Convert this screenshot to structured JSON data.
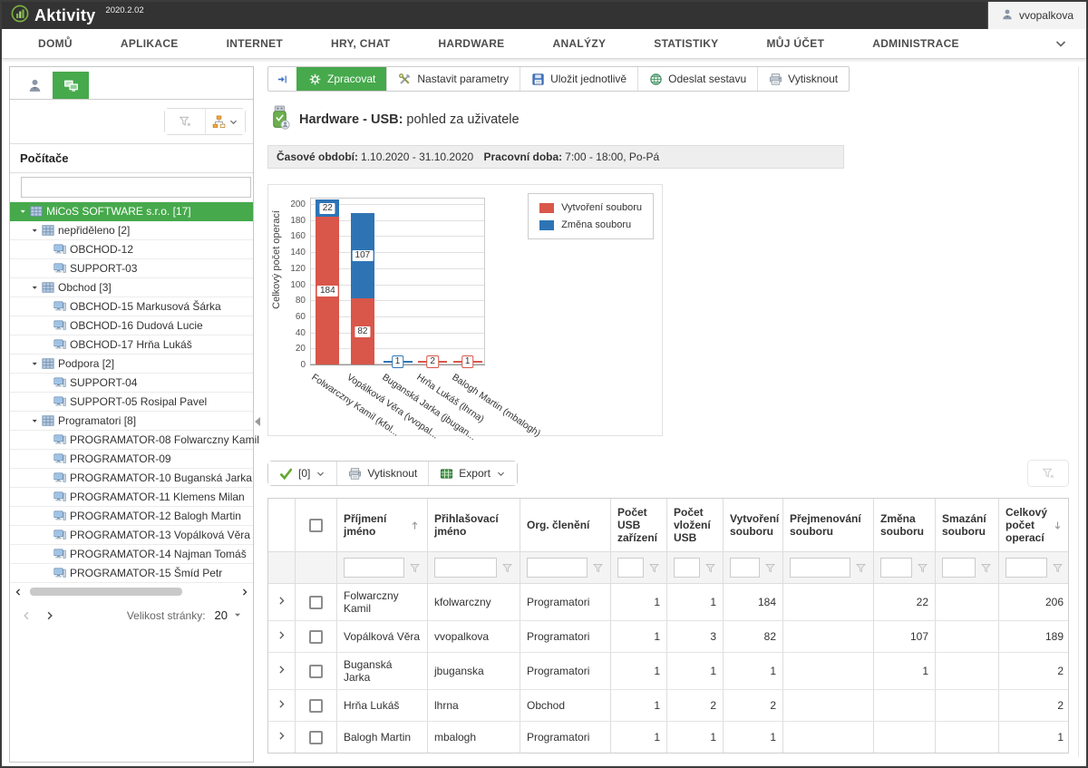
{
  "topbar": {
    "app": "Aktivity",
    "version": "2020.2.02",
    "user": "vvopalkova"
  },
  "menu": {
    "items": [
      "DOMŮ",
      "APLIKACE",
      "INTERNET",
      "HRY, CHAT",
      "HARDWARE",
      "ANALÝZY",
      "STATISTIKY",
      "MŮJ ÚČET",
      "ADMINISTRACE"
    ]
  },
  "sidebar": {
    "tabs": [
      {
        "name": "users",
        "icon": "person",
        "active": false
      },
      {
        "name": "computers",
        "icon": "computers",
        "active": true
      }
    ],
    "tools": [
      {
        "name": "clear-filter",
        "icon": "filter-clear",
        "chevron": false
      },
      {
        "name": "tree-options",
        "icon": "tree-select",
        "chevron": true
      }
    ],
    "header": "Počítače",
    "search_value": "",
    "tree": [
      {
        "level": 0,
        "icon": "org-grid",
        "caret": true,
        "label": "MiCoS SOFTWARE s.r.o. [17]",
        "selected": true
      },
      {
        "level": 1,
        "icon": "org-grid",
        "caret": true,
        "label": "nepřiděleno [2]"
      },
      {
        "level": 2,
        "icon": "computer",
        "caret": false,
        "label": "OBCHOD-12"
      },
      {
        "level": 2,
        "icon": "computer",
        "caret": false,
        "label": "SUPPORT-03"
      },
      {
        "level": 1,
        "icon": "org-grid",
        "caret": true,
        "label": "Obchod [3]"
      },
      {
        "level": 2,
        "icon": "computer",
        "caret": false,
        "label": "OBCHOD-15 Markusová Šárka"
      },
      {
        "level": 2,
        "icon": "computer",
        "caret": false,
        "label": "OBCHOD-16 Dudová Lucie"
      },
      {
        "level": 2,
        "icon": "computer",
        "caret": false,
        "label": "OBCHOD-17 Hrňa Lukáš"
      },
      {
        "level": 1,
        "icon": "org-grid",
        "caret": true,
        "label": "Podpora [2]"
      },
      {
        "level": 2,
        "icon": "computer",
        "caret": false,
        "label": "SUPPORT-04"
      },
      {
        "level": 2,
        "icon": "computer",
        "caret": false,
        "label": "SUPPORT-05 Rosipal Pavel"
      },
      {
        "level": 1,
        "icon": "org-grid",
        "caret": true,
        "label": "Programatori [8]"
      },
      {
        "level": 2,
        "icon": "computer",
        "caret": false,
        "label": "PROGRAMATOR-08 Folwarczny Kamil"
      },
      {
        "level": 2,
        "icon": "computer",
        "caret": false,
        "label": "PROGRAMATOR-09"
      },
      {
        "level": 2,
        "icon": "computer",
        "caret": false,
        "label": "PROGRAMATOR-10 Buganská Jarka"
      },
      {
        "level": 2,
        "icon": "computer",
        "caret": false,
        "label": "PROGRAMATOR-11 Klemens Milan"
      },
      {
        "level": 2,
        "icon": "computer",
        "caret": false,
        "label": "PROGRAMATOR-12 Balogh Martin"
      },
      {
        "level": 2,
        "icon": "computer",
        "caret": false,
        "label": "PROGRAMATOR-13 Vopálková Věra"
      },
      {
        "level": 2,
        "icon": "computer",
        "caret": false,
        "label": "PROGRAMATOR-14 Najman Tomáš"
      },
      {
        "level": 2,
        "icon": "computer",
        "caret": false,
        "label": "PROGRAMATOR-15 Šmíd Petr"
      }
    ],
    "pager": {
      "page_size_label": "Velikost stránky:",
      "page_size": "20"
    }
  },
  "toolbar": {
    "buttons": [
      {
        "name": "collapse-panel",
        "icon": "panel-collapse",
        "label": "",
        "active": false
      },
      {
        "name": "process",
        "icon": "gear",
        "label": "Zpracovat",
        "active": true
      },
      {
        "name": "set-parameters",
        "icon": "wrench",
        "label": "Nastavit parametry",
        "active": false
      },
      {
        "name": "save-individually",
        "icon": "save",
        "label": "Uložit jednotlivě",
        "active": false
      },
      {
        "name": "send-report",
        "icon": "send",
        "label": "Odeslat sestavu",
        "active": false
      },
      {
        "name": "print",
        "icon": "print",
        "label": "Vytisknout",
        "active": false
      }
    ]
  },
  "report": {
    "title_bold": "Hardware - USB:",
    "title_rest": "pohled za uživatele",
    "period_label": "Časové období:",
    "period_value": "1.10.2020 - 31.10.2020",
    "worktime_label": "Pracovní doba:",
    "worktime_value": "7:00 - 18:00, Po-Pá"
  },
  "chart_data": {
    "type": "bar",
    "stacked": true,
    "title": "",
    "xlabel": "",
    "ylabel": "Celkový počet operací",
    "ylim": [
      0,
      200
    ],
    "ytick_step": 20,
    "grid": true,
    "legend_position": "top-right",
    "categories": [
      "Folwarczny Kamil (kfol...",
      "Vopálková Věra (vvopal...",
      "Buganská Jarka (jbugan...",
      "Hrňa Lukáš (lhrna)",
      "Balogh Martin (mbalogh)"
    ],
    "series": [
      {
        "name": "Vytvoření souboru",
        "color": "#d9564a",
        "values": [
          184,
          82,
          1,
          2,
          1
        ]
      },
      {
        "name": "Změna souboru",
        "color": "#2e74b5",
        "values": [
          22,
          107,
          1,
          0,
          0
        ]
      }
    ],
    "point_labels": [
      [
        {
          "series": 0,
          "value": 184
        },
        {
          "series": 1,
          "value": 22
        }
      ],
      [
        {
          "series": 0,
          "value": 82
        },
        {
          "series": 1,
          "value": 107
        }
      ],
      [
        {
          "series": 1,
          "value": 1
        }
      ],
      [
        {
          "series": 0,
          "value": 2
        }
      ],
      [
        {
          "series": 0,
          "value": 1
        }
      ]
    ]
  },
  "grid_toolbar": {
    "buttons": [
      {
        "name": "selected-count",
        "icon": "check",
        "label": "[0]",
        "chevron": true
      },
      {
        "name": "print-grid",
        "icon": "print",
        "label": "Vytisknout",
        "chevron": false
      },
      {
        "name": "export",
        "icon": "export",
        "label": "Export",
        "chevron": true
      }
    ]
  },
  "table": {
    "columns": [
      {
        "type": "expand",
        "width": 30
      },
      {
        "type": "check",
        "width": 46
      },
      {
        "type": "data",
        "label": "Příjmení jméno",
        "width": 100,
        "sort": "asc",
        "align": "left"
      },
      {
        "type": "data",
        "label": "Přihlašovací jméno",
        "width": 102,
        "sort": "",
        "align": "left"
      },
      {
        "type": "data",
        "label": "Org. členění",
        "width": 100,
        "sort": "",
        "align": "left"
      },
      {
        "type": "data",
        "label": "Počet USB zařízení",
        "width": 62,
        "sort": "",
        "align": "right",
        "accent": true
      },
      {
        "type": "data",
        "label": "Počet vložení USB",
        "width": 62,
        "sort": "",
        "align": "right"
      },
      {
        "type": "data",
        "label": "Vytvoření souboru",
        "width": 66,
        "sort": "",
        "align": "right"
      },
      {
        "type": "data",
        "label": "Přejmenování souboru",
        "width": 100,
        "sort": "",
        "align": "right"
      },
      {
        "type": "data",
        "label": "Změna souboru",
        "width": 68,
        "sort": "",
        "align": "right"
      },
      {
        "type": "data",
        "label": "Smazání souboru",
        "width": 70,
        "sort": "",
        "align": "right"
      },
      {
        "type": "data",
        "label": "Celkový počet operací",
        "width": 78,
        "sort": "desc",
        "align": "right"
      }
    ],
    "rows": [
      [
        "Folwarczny Kamil",
        "kfolwarczny",
        "Programatori",
        "1",
        "1",
        "184",
        "",
        "22",
        "",
        "206"
      ],
      [
        "Vopálková Věra",
        "vvopalkova",
        "Programatori",
        "1",
        "3",
        "82",
        "",
        "107",
        "",
        "189"
      ],
      [
        "Buganská Jarka",
        "jbuganska",
        "Programatori",
        "1",
        "1",
        "1",
        "",
        "1",
        "",
        "2"
      ],
      [
        "Hrňa Lukáš",
        "lhrna",
        "Obchod",
        "1",
        "2",
        "2",
        "",
        "",
        "",
        "2"
      ],
      [
        "Balogh Martin",
        "mbalogh",
        "Programatori",
        "1",
        "1",
        "1",
        "",
        "",
        "",
        "1"
      ]
    ]
  }
}
